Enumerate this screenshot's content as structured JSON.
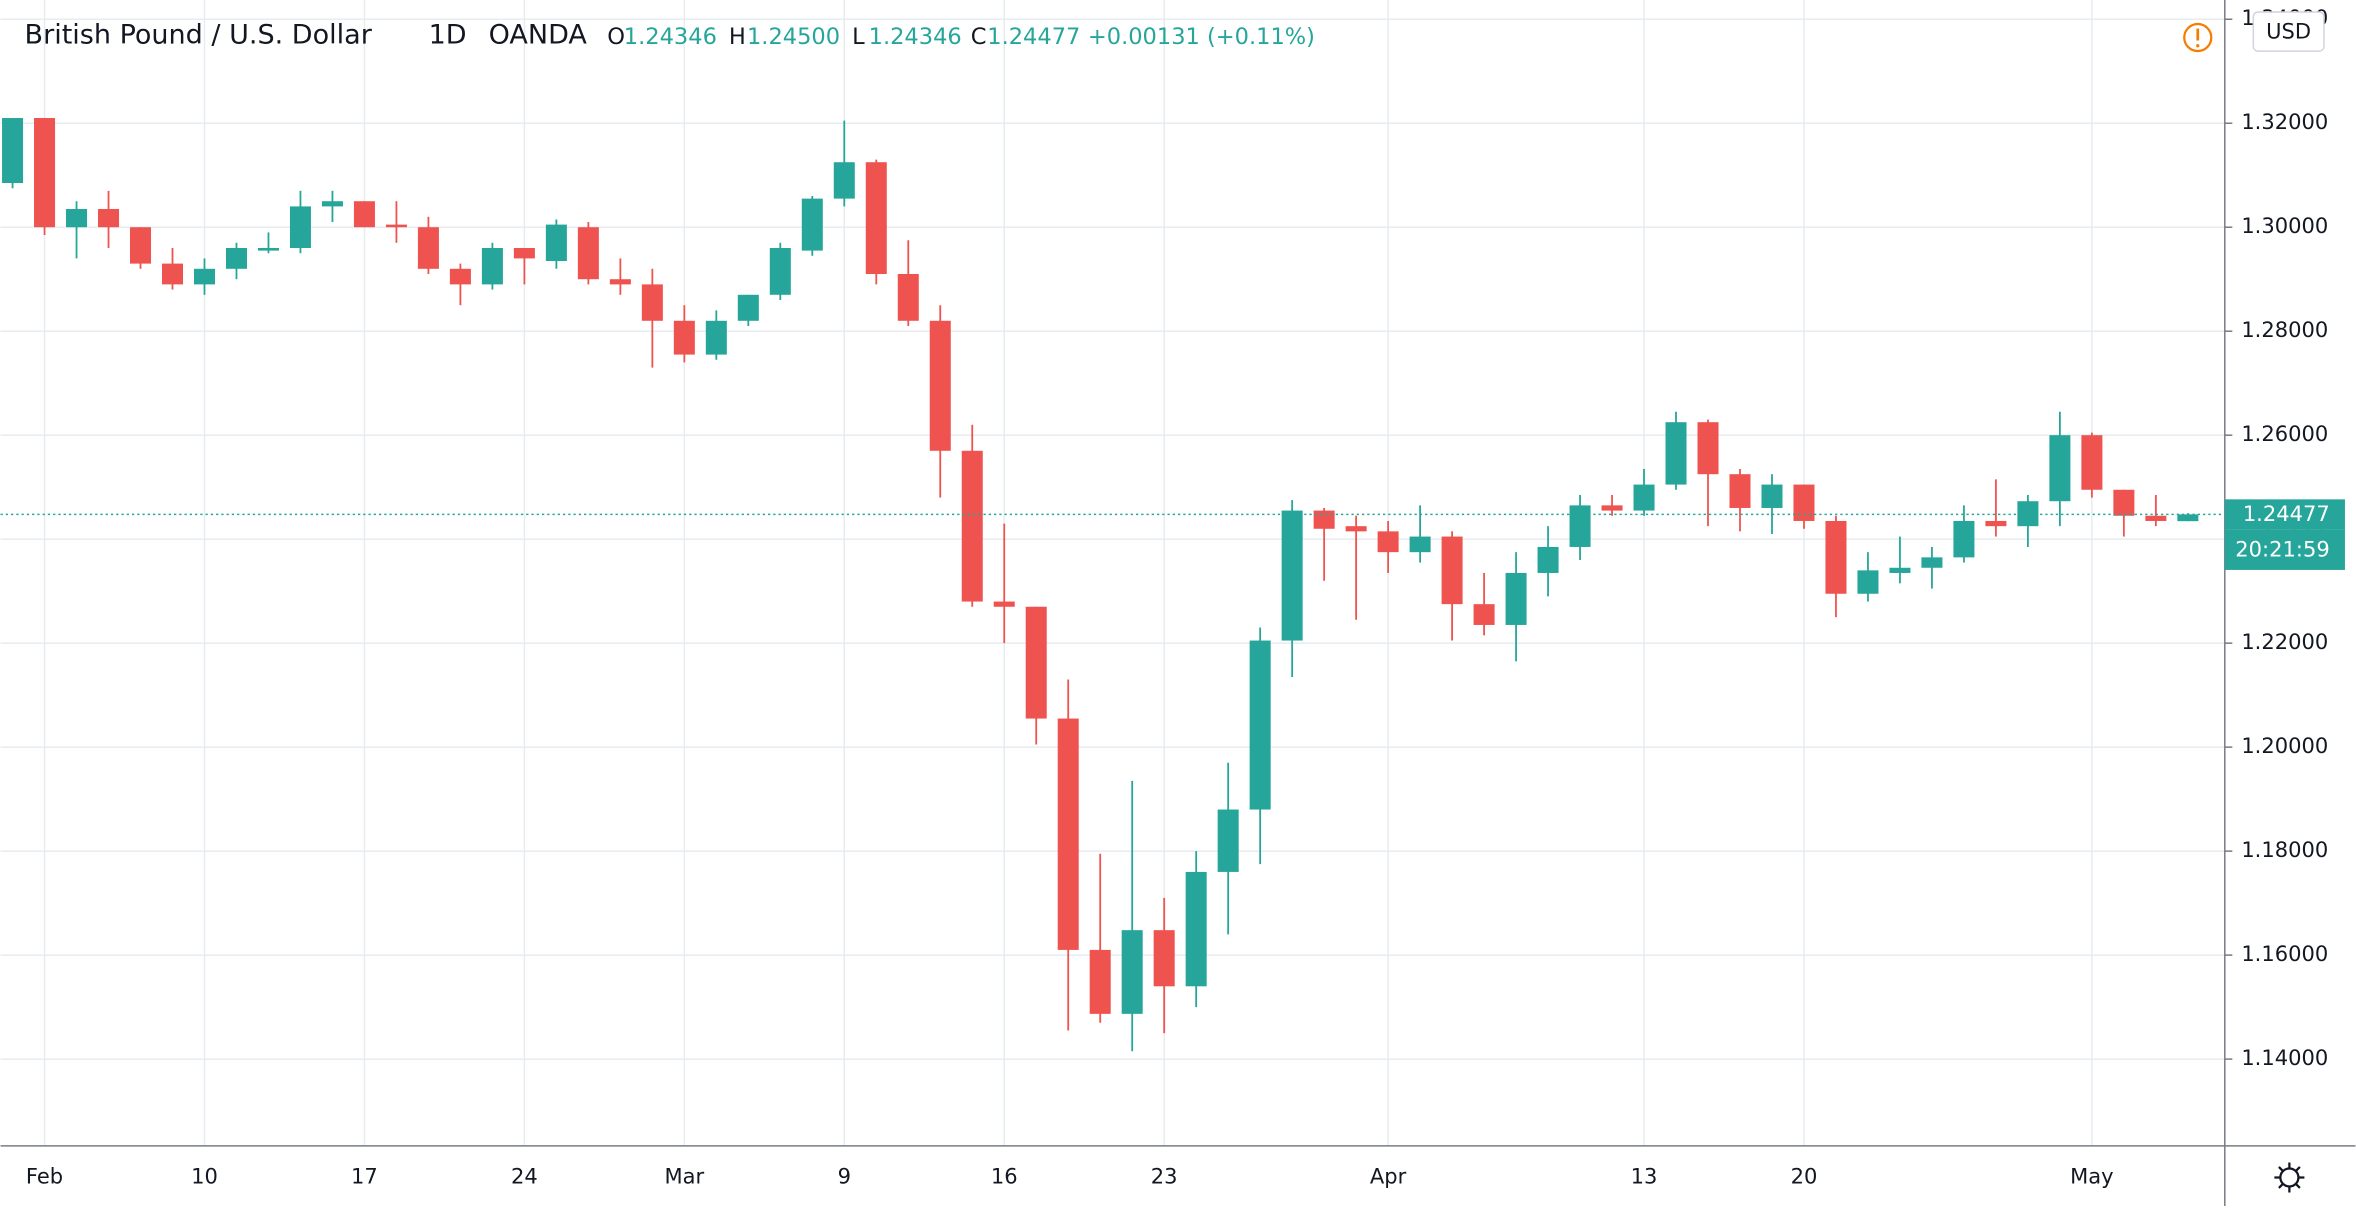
{
  "chart_data": {
    "type": "candlestick",
    "header": {
      "symbol": "British Pound / U.S. Dollar",
      "interval": "1D",
      "source": "OANDA",
      "ohlc": [
        {
          "key": "O",
          "value": "1.24346"
        },
        {
          "key": "H",
          "value": "1.24500"
        },
        {
          "key": "L",
          "value": "1.24346"
        },
        {
          "key": "C",
          "value": "1.24477"
        }
      ],
      "change": "+0.00131 (+0.11%)"
    },
    "currency": "USD",
    "countdown": "20:21:59",
    "up_color": "#26a69a",
    "down_color": "#ef5350",
    "grid": true,
    "categories": [
      null,
      "Feb",
      null,
      null,
      null,
      null,
      "10",
      null,
      null,
      null,
      null,
      "17",
      null,
      null,
      null,
      null,
      "24",
      null,
      null,
      null,
      null,
      "Mar",
      null,
      null,
      null,
      null,
      "9",
      null,
      null,
      null,
      null,
      "16",
      null,
      null,
      null,
      null,
      "23",
      null,
      null,
      null,
      null,
      null,
      null,
      "Apr",
      null,
      null,
      null,
      null,
      null,
      null,
      null,
      "13",
      null,
      null,
      null,
      null,
      "20",
      null,
      null,
      null,
      null,
      null,
      null,
      null,
      null,
      "May",
      null,
      null,
      null
    ],
    "open": [
      1.3085,
      1.321,
      1.3,
      1.3035,
      1.3,
      1.293,
      1.289,
      1.292,
      1.2955,
      1.296,
      1.304,
      1.305,
      1.3005,
      1.3,
      1.292,
      1.289,
      1.296,
      1.2935,
      1.3,
      1.29,
      1.289,
      1.282,
      1.2755,
      1.282,
      1.287,
      1.2955,
      1.3055,
      1.3125,
      1.291,
      1.282,
      1.257,
      1.228,
      1.227,
      1.2055,
      1.161,
      1.1487,
      1.1648,
      1.154,
      1.176,
      1.188,
      1.2205,
      1.2455,
      1.2425,
      1.2415,
      1.2375,
      1.2405,
      1.2275,
      1.2235,
      1.2335,
      1.2385,
      1.2465,
      1.2455,
      1.2505,
      1.2625,
      1.2525,
      1.246,
      1.2505,
      1.2435,
      1.2295,
      1.2335,
      1.2345,
      1.2365,
      1.2435,
      1.2425,
      1.2473,
      1.26,
      1.2495,
      1.2445,
      1.24346
    ],
    "high": [
      1.321,
      1.321,
      1.305,
      1.307,
      1.3,
      1.296,
      1.294,
      1.297,
      1.299,
      1.307,
      1.307,
      1.305,
      1.305,
      1.302,
      1.293,
      1.297,
      1.296,
      1.3015,
      1.301,
      1.294,
      1.292,
      1.285,
      1.284,
      1.287,
      1.297,
      1.306,
      1.3205,
      1.313,
      1.2975,
      1.285,
      1.262,
      1.243,
      1.227,
      1.213,
      1.1795,
      1.1935,
      1.171,
      1.18,
      1.197,
      1.223,
      1.2475,
      1.246,
      1.2445,
      1.2435,
      1.2465,
      1.2415,
      1.2335,
      1.2375,
      1.2425,
      1.2485,
      1.2485,
      1.2535,
      1.2645,
      1.263,
      1.2535,
      1.2525,
      1.2505,
      1.2445,
      1.2375,
      1.2405,
      1.2385,
      1.2465,
      1.2515,
      1.2485,
      1.2645,
      1.2605,
      1.2495,
      1.2485,
      1.245
    ],
    "low": [
      1.3075,
      1.2985,
      1.294,
      1.296,
      1.292,
      1.288,
      1.287,
      1.29,
      1.295,
      1.295,
      1.301,
      1.3,
      1.297,
      1.291,
      1.285,
      1.288,
      1.289,
      1.292,
      1.289,
      1.287,
      1.273,
      1.274,
      1.2745,
      1.281,
      1.286,
      1.2945,
      1.304,
      1.289,
      1.281,
      1.248,
      1.227,
      1.22,
      1.2005,
      1.1455,
      1.147,
      1.1415,
      1.145,
      1.15,
      1.164,
      1.1775,
      1.2135,
      1.232,
      1.2245,
      1.2335,
      1.2355,
      1.2205,
      1.2215,
      1.2165,
      1.229,
      1.236,
      1.2445,
      1.2445,
      1.2495,
      1.2425,
      1.2415,
      1.241,
      1.242,
      1.225,
      1.228,
      1.2315,
      1.2305,
      1.2355,
      1.2405,
      1.2385,
      1.2425,
      1.248,
      1.2405,
      1.2425,
      1.24346
    ],
    "close": [
      1.321,
      1.3,
      1.3035,
      1.3,
      1.293,
      1.289,
      1.292,
      1.296,
      1.296,
      1.304,
      1.305,
      1.3,
      1.3,
      1.292,
      1.289,
      1.296,
      1.294,
      1.3005,
      1.29,
      1.289,
      1.282,
      1.2755,
      1.282,
      1.287,
      1.296,
      1.3055,
      1.3125,
      1.291,
      1.282,
      1.257,
      1.228,
      1.227,
      1.2055,
      1.161,
      1.1487,
      1.1648,
      1.154,
      1.176,
      1.188,
      1.2205,
      1.2455,
      1.242,
      1.2415,
      1.2375,
      1.2405,
      1.2275,
      1.2235,
      1.2335,
      1.2385,
      1.2465,
      1.2455,
      1.2505,
      1.2625,
      1.2525,
      1.246,
      1.2505,
      1.2435,
      1.2295,
      1.234,
      1.2345,
      1.2365,
      1.2435,
      1.2425,
      1.2473,
      1.26,
      1.2495,
      1.2445,
      1.2435,
      1.24477
    ],
    "ylim": [
      1.1233,
      1.3437
    ],
    "yticks": [
      {
        "value": 1.14,
        "label": "1.14000"
      },
      {
        "value": 1.16,
        "label": "1.16000"
      },
      {
        "value": 1.18,
        "label": "1.18000"
      },
      {
        "value": 1.2,
        "label": "1.20000"
      },
      {
        "value": 1.22,
        "label": "1.22000"
      },
      {
        "value": 1.24,
        "label": "1.24000"
      },
      {
        "value": 1.26,
        "label": "1.26000"
      },
      {
        "value": 1.28,
        "label": "1.28000"
      },
      {
        "value": 1.3,
        "label": "1.30000"
      },
      {
        "value": 1.32,
        "label": "1.32000"
      },
      {
        "value": 1.34,
        "label": "1.34000"
      }
    ]
  }
}
